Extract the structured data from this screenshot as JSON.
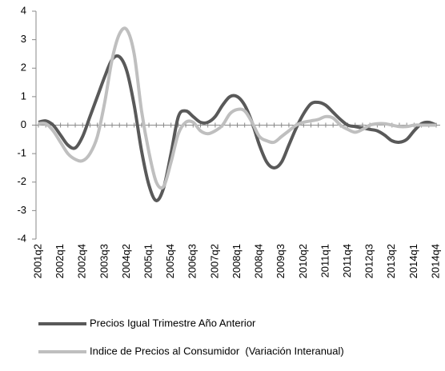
{
  "chart_data": {
    "type": "line",
    "categories": [
      "2001q2",
      null,
      null,
      "2002q1",
      null,
      null,
      "2002q4",
      null,
      null,
      "2003q3",
      null,
      null,
      "2004q2",
      null,
      null,
      "2005q1",
      null,
      null,
      "2005q4",
      null,
      null,
      "2006q3",
      null,
      null,
      "2007q2",
      null,
      null,
      "2008q1",
      null,
      null,
      "2008q4",
      null,
      null,
      "2009q3",
      null,
      null,
      "2010q2",
      null,
      null,
      "2011q1",
      null,
      null,
      "2011q4",
      null,
      null,
      "2012q3",
      null,
      null,
      "2013q2",
      null,
      null,
      "2014q1",
      null,
      null,
      "2014q4"
    ],
    "series": [
      {
        "name": "Precios Igual Trimestre Año Anterior",
        "color": "#595959",
        "values": [
          0.1,
          0.15,
          0,
          -0.35,
          -0.7,
          -0.8,
          -0.4,
          0.3,
          1.0,
          1.7,
          2.3,
          2.4,
          1.9,
          0.7,
          -0.9,
          -2.1,
          -2.65,
          -2.2,
          -1.0,
          0.3,
          0.5,
          0.3,
          0.1,
          0.1,
          0.3,
          0.7,
          1.0,
          1.0,
          0.7,
          0.1,
          -0.7,
          -1.3,
          -1.5,
          -1.3,
          -0.7,
          -0.1,
          0.4,
          0.75,
          0.8,
          0.7,
          0.45,
          0.2,
          0.0,
          -0.05,
          -0.1,
          -0.15,
          -0.2,
          -0.35,
          -0.55,
          -0.6,
          -0.5,
          -0.2,
          0.05,
          0.1,
          0.0
        ]
      },
      {
        "name": "Indice de Precios al Consumidor  (Variación Interanual)",
        "color": "#bfbfbf",
        "values": [
          0.05,
          0.05,
          -0.2,
          -0.6,
          -1.0,
          -1.2,
          -1.25,
          -1.0,
          -0.4,
          0.8,
          2.3,
          3.2,
          3.35,
          2.5,
          0.5,
          -0.95,
          -2.0,
          -2.15,
          -1.3,
          -0.3,
          0.1,
          0.1,
          -0.2,
          -0.3,
          -0.2,
          0.0,
          0.4,
          0.55,
          0.5,
          0.1,
          -0.4,
          -0.55,
          -0.6,
          -0.4,
          -0.2,
          0.0,
          0.1,
          0.15,
          0.2,
          0.3,
          0.25,
          0.0,
          -0.15,
          -0.25,
          -0.15,
          0.0,
          0.05,
          0.05,
          0.0,
          -0.05,
          -0.05,
          0.0,
          0.0,
          0.0,
          0.0
        ]
      }
    ],
    "ylim": [
      -4,
      4
    ],
    "yticks": [
      -4,
      -3,
      -2,
      -1,
      0,
      1,
      2,
      3,
      4
    ],
    "grid": false
  }
}
